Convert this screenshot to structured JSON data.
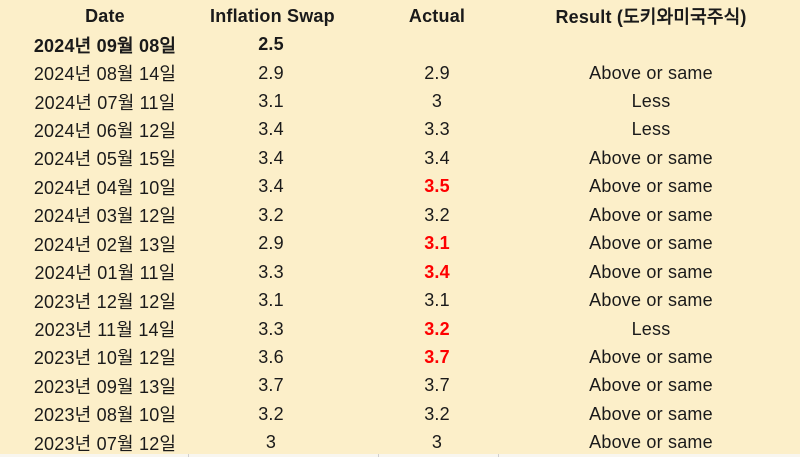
{
  "colors": {
    "background": "#fcefc9",
    "text": "#1a1a1a",
    "highlight_red": "#fe0000"
  },
  "chart_data": {
    "type": "table",
    "columns": [
      "Date",
      "Inflation Swap",
      "Actual",
      "Result (도키와미국주식)"
    ],
    "rows": [
      {
        "date": "2024년 09월 08일",
        "inflation_swap": "2.5",
        "actual": "",
        "result": "",
        "bold": true,
        "actual_red": false
      },
      {
        "date": "2024년 08월 14일",
        "inflation_swap": "2.9",
        "actual": "2.9",
        "result": "Above or same",
        "bold": false,
        "actual_red": false
      },
      {
        "date": "2024년 07월 11일",
        "inflation_swap": "3.1",
        "actual": "3",
        "result": "Less",
        "bold": false,
        "actual_red": false
      },
      {
        "date": "2024년 06월 12일",
        "inflation_swap": "3.4",
        "actual": "3.3",
        "result": "Less",
        "bold": false,
        "actual_red": false
      },
      {
        "date": "2024년 05월 15일",
        "inflation_swap": "3.4",
        "actual": "3.4",
        "result": "Above or same",
        "bold": false,
        "actual_red": false
      },
      {
        "date": "2024년 04월 10일",
        "inflation_swap": "3.4",
        "actual": "3.5",
        "result": "Above or same",
        "bold": false,
        "actual_red": true
      },
      {
        "date": "2024년 03월 12일",
        "inflation_swap": "3.2",
        "actual": "3.2",
        "result": "Above or same",
        "bold": false,
        "actual_red": false
      },
      {
        "date": "2024년 02월 13일",
        "inflation_swap": "2.9",
        "actual": "3.1",
        "result": "Above or same",
        "bold": false,
        "actual_red": true
      },
      {
        "date": "2024년 01월 11일",
        "inflation_swap": "3.3",
        "actual": "3.4",
        "result": "Above or same",
        "bold": false,
        "actual_red": true
      },
      {
        "date": "2023년 12월 12일",
        "inflation_swap": "3.1",
        "actual": "3.1",
        "result": "Above or same",
        "bold": false,
        "actual_red": false
      },
      {
        "date": "2023년 11월 14일",
        "inflation_swap": "3.3",
        "actual": "3.2",
        "result": "Less",
        "bold": false,
        "actual_red": true
      },
      {
        "date": "2023년 10월 12일",
        "inflation_swap": "3.6",
        "actual": "3.7",
        "result": "Above or same",
        "bold": false,
        "actual_red": true
      },
      {
        "date": "2023년 09월 13일",
        "inflation_swap": "3.7",
        "actual": "3.7",
        "result": "Above or same",
        "bold": false,
        "actual_red": false
      },
      {
        "date": "2023년 08월 10일",
        "inflation_swap": "3.2",
        "actual": "3.2",
        "result": "Above or same",
        "bold": false,
        "actual_red": false
      },
      {
        "date": "2023년 07월 12일",
        "inflation_swap": "3",
        "actual": "3",
        "result": "Above or same",
        "bold": false,
        "actual_red": false
      }
    ]
  }
}
